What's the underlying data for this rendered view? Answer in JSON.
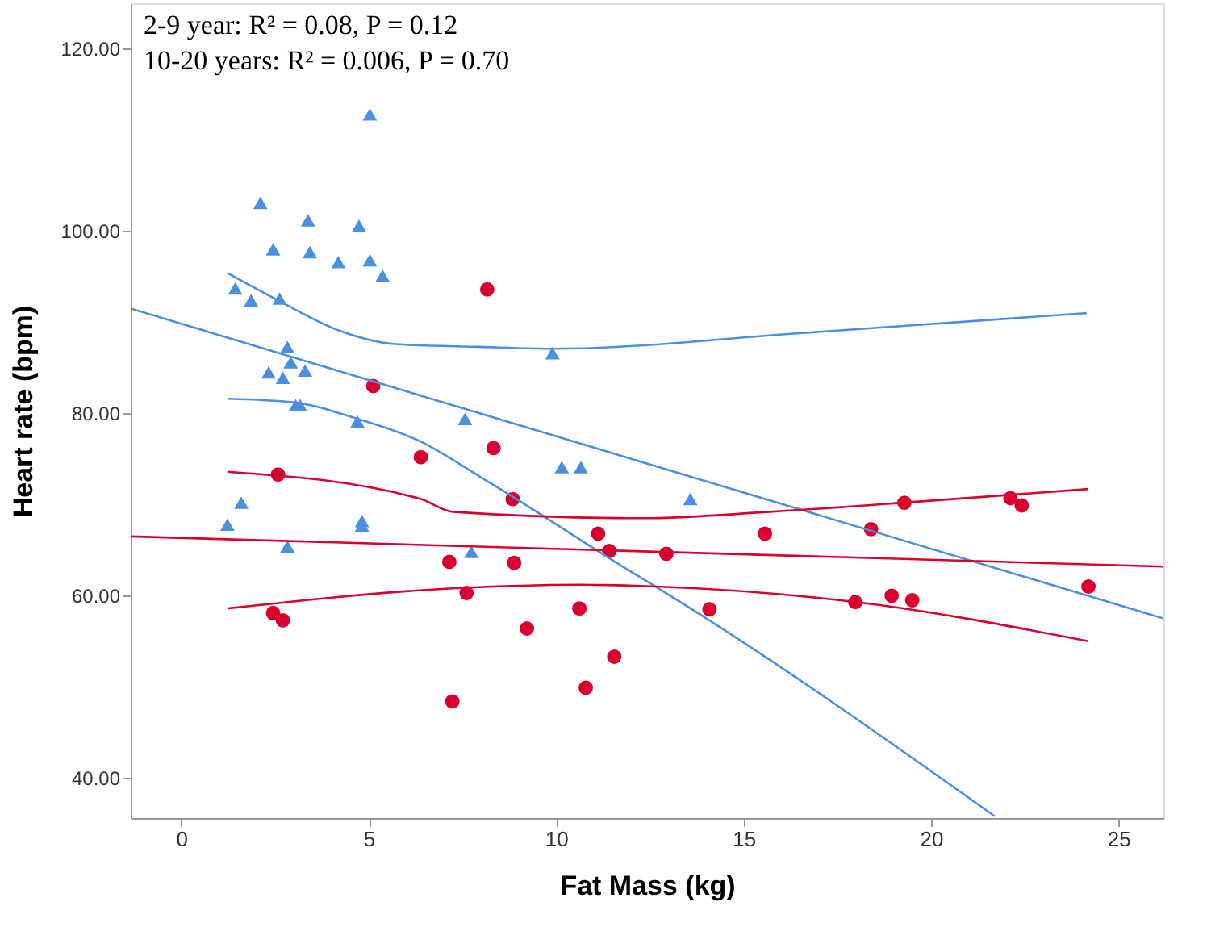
{
  "chart_data": {
    "type": "scatter",
    "xlabel": "Fat Mass (kg)",
    "ylabel": "Heart rate (bpm)",
    "annotations": [
      "2-9 year: R² = 0.08, P = 0.12",
      "10-20 years: R² = 0.006, P = 0.70"
    ],
    "xlim": [
      -1.35,
      26.2
    ],
    "xticks": [
      0,
      5,
      10,
      15,
      20,
      25
    ],
    "ylim": [
      35.6,
      125
    ],
    "yticks": [
      {
        "value": 40,
        "label": "40.00"
      },
      {
        "value": 60,
        "label": "60.00"
      },
      {
        "value": 80,
        "label": "80.00"
      },
      {
        "value": 100,
        "label": "100.00"
      },
      {
        "value": 120,
        "label": "120.00"
      }
    ],
    "grid": false,
    "series": [
      {
        "marker": "triangle",
        "color": "#4a90e2",
        "x": [
          5.03,
          2.11,
          3.38,
          4.74,
          2.45,
          3.43,
          4.19,
          5.03,
          5.37,
          1.44,
          1.86,
          2.62,
          2.83,
          2.92,
          2.33,
          3.3,
          2.71,
          3.05,
          3.17,
          4.7,
          7.57,
          9.9,
          10.15,
          10.66,
          13.58,
          7.74,
          1.6,
          1.23,
          4.82,
          4.82,
          2.83
        ],
        "values": [
          112.8,
          103.1,
          101.2,
          100.6,
          98.0,
          97.7,
          96.6,
          96.8,
          95.1,
          93.7,
          92.4,
          92.6,
          87.3,
          85.6,
          84.5,
          84.7,
          83.9,
          80.9,
          80.9,
          79.1,
          79.4,
          86.6,
          74.1,
          74.1,
          70.6,
          64.8,
          70.2,
          67.8,
          67.7,
          68.2,
          65.4
        ]
      },
      {
        "marker": "circle",
        "color": "#d9002f",
        "x": [
          8.16,
          5.12,
          2.58,
          6.39,
          8.33,
          8.84,
          7.15,
          7.61,
          8.88,
          9.22,
          7.23,
          2.45,
          2.71,
          10.62,
          10.79,
          11.12,
          11.42,
          11.55,
          12.94,
          14.09,
          15.57,
          18.4,
          17.98,
          18.95,
          19.5,
          19.29,
          22.12,
          22.42,
          24.2
        ],
        "values": [
          93.6,
          83.0,
          73.3,
          75.2,
          76.2,
          70.6,
          63.7,
          60.3,
          63.6,
          56.4,
          48.4,
          58.1,
          57.3,
          58.6,
          49.9,
          66.8,
          64.9,
          53.3,
          64.6,
          58.5,
          66.8,
          67.3,
          59.3,
          60.0,
          59.5,
          70.2,
          70.7,
          69.9,
          61.0
        ]
      },
      {
        "type": "line",
        "line_style": "solid",
        "color": "#4a90e2",
        "x": [
          -1.35,
          26.2
        ],
        "values": [
          91.5,
          57.5
        ]
      },
      {
        "type": "line",
        "line_style": "solid",
        "color": "#4a90e2",
        "x": [
          1.23,
          2.58,
          4.27,
          5.71,
          7.95,
          9.9,
          16.5,
          24.15
        ],
        "values": [
          95.4,
          92.4,
          89.0,
          87.6,
          87.3,
          87.1,
          88.8,
          91.0
        ]
      },
      {
        "type": "line",
        "line_style": "solid",
        "color": "#4a90e2",
        "x": [
          1.23,
          3.0,
          4.7,
          6.39,
          7.95,
          8.63,
          11.89,
          12.73,
          21.7
        ],
        "values": [
          81.6,
          81.2,
          79.4,
          76.9,
          73.1,
          71.4,
          62.9,
          60.8,
          35.8
        ]
      },
      {
        "type": "line",
        "line_style": "solid",
        "color": "#d9002f",
        "x": [
          -1.35,
          26.2
        ],
        "values": [
          66.5,
          63.2
        ]
      },
      {
        "type": "line",
        "line_style": "solid",
        "color": "#d9002f",
        "x": [
          1.23,
          6.39,
          7.23,
          12.3,
          15.7,
          19.9,
          24.2
        ],
        "values": [
          73.6,
          70.6,
          69.2,
          68.5,
          69.2,
          70.4,
          71.7
        ]
      },
      {
        "type": "line",
        "line_style": "solid",
        "color": "#d9002f",
        "x": [
          1.23,
          7.23,
          10.6,
          12.7,
          18.0,
          24.2
        ],
        "values": [
          58.6,
          60.8,
          61.2,
          61.0,
          59.3,
          55.0
        ]
      }
    ]
  }
}
